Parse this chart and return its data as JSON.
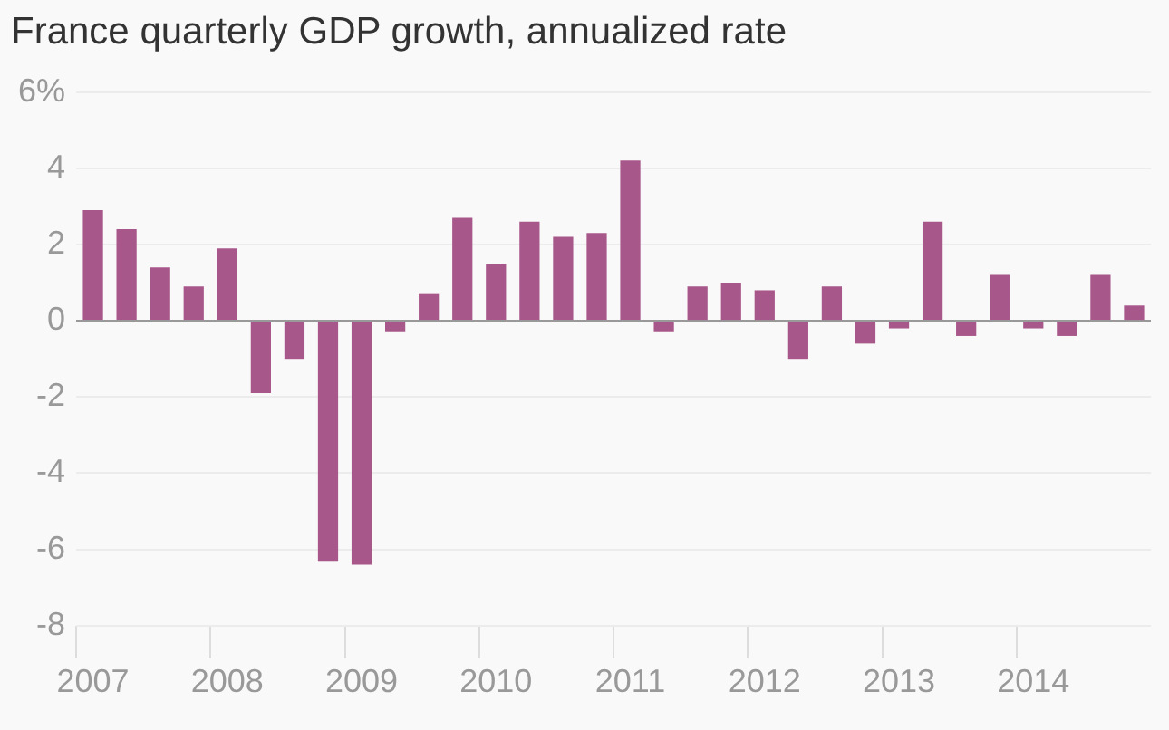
{
  "chart_data": {
    "type": "bar",
    "title": "France quarterly GDP growth, annualized rate",
    "categories": [
      "2007",
      null,
      null,
      null,
      "2008",
      null,
      null,
      null,
      "2009",
      null,
      null,
      null,
      "2010",
      null,
      null,
      null,
      "2011",
      null,
      null,
      null,
      "2012",
      null,
      null,
      null,
      "2013",
      null,
      null,
      null,
      "2014",
      null,
      null,
      null
    ],
    "values": [
      2.9,
      2.4,
      1.4,
      0.9,
      1.9,
      -1.9,
      -1.0,
      -6.3,
      -6.4,
      -0.3,
      0.7,
      2.7,
      1.5,
      2.6,
      2.2,
      2.3,
      4.2,
      -0.3,
      0.9,
      1.0,
      0.8,
      -1.0,
      0.9,
      -0.6,
      -0.2,
      2.6,
      -0.4,
      1.2,
      -0.2,
      -0.4,
      1.2,
      0.4
    ],
    "color": "#a8578a",
    "ylim": [
      -8,
      6
    ],
    "yticks": [
      {
        "value": 6,
        "label": "6%"
      },
      4,
      2,
      0,
      -2,
      -4,
      -6,
      -8
    ],
    "grid": "y",
    "legend": false
  }
}
